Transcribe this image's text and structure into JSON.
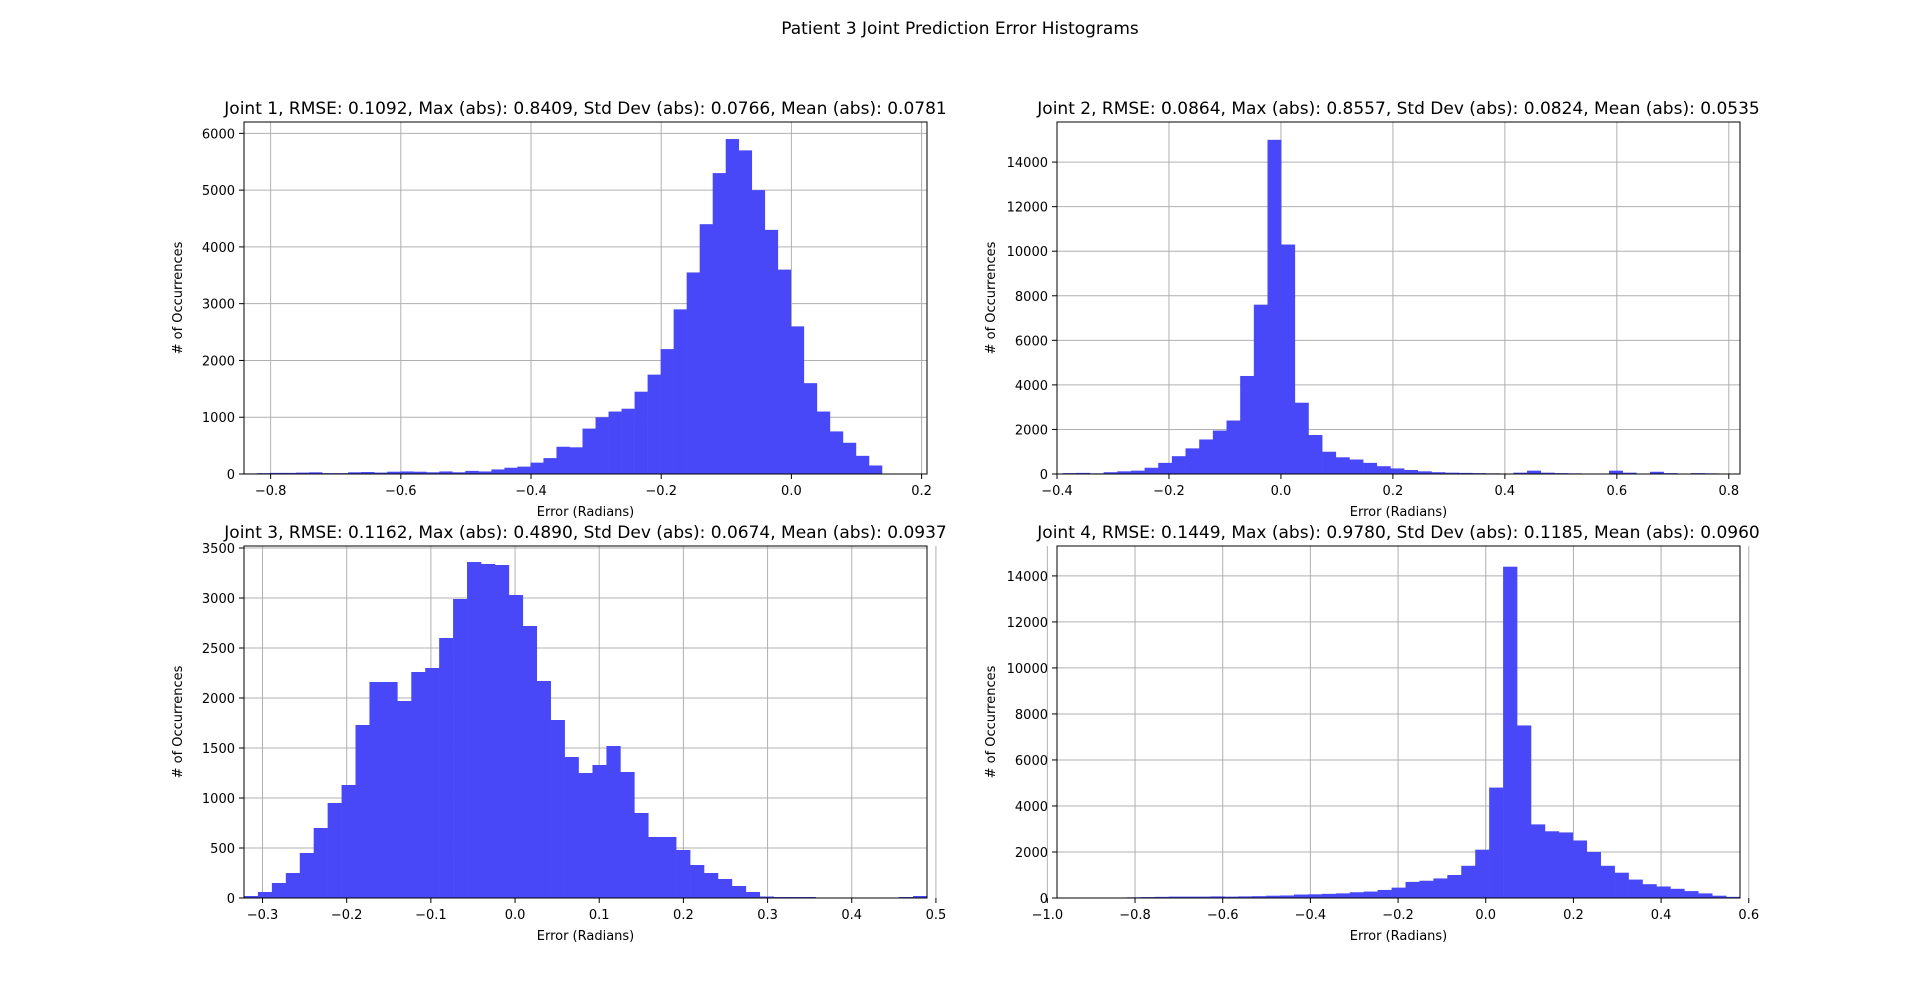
{
  "figure": {
    "title": "Patient 3 Joint Prediction Error Histograms",
    "bar_color": "#4848f8"
  },
  "chart_data": [
    {
      "type": "bar",
      "title": "Joint 1, RMSE: 0.1092, Max (abs): 0.8409, Std Dev (abs): 0.0766, Mean (abs): 0.0781",
      "xlabel": "Error (Radians)",
      "ylabel": "# of Occurrences",
      "xlim": [
        -0.8409,
        0.2083
      ],
      "ylim": [
        0,
        6200
      ],
      "xticks": [
        -0.8,
        -0.6,
        -0.4,
        -0.2,
        0.0,
        0.2
      ],
      "yticks": [
        0,
        1000,
        2000,
        3000,
        4000,
        5000,
        6000
      ],
      "grid": true,
      "bin_start": -0.8409,
      "bin_width": 0.02,
      "values": [
        10,
        15,
        20,
        20,
        25,
        30,
        15,
        15,
        30,
        35,
        25,
        40,
        45,
        40,
        30,
        45,
        30,
        55,
        45,
        80,
        110,
        130,
        200,
        280,
        480,
        470,
        800,
        1000,
        1100,
        1150,
        1450,
        1750,
        2200,
        2900,
        3550,
        4400,
        5300,
        5900,
        5700,
        5000,
        4300,
        3600,
        2600,
        1600,
        1100,
        750,
        550,
        320,
        150
      ]
    },
    {
      "type": "bar",
      "title": "Joint 2, RMSE: 0.0864, Max (abs): 0.8557, Std Dev (abs): 0.0824, Mean (abs): 0.0535",
      "xlabel": "Error (Radians)",
      "ylabel": "# of Occurrences",
      "xlim": [
        -0.4,
        0.82
      ],
      "ylim": [
        0,
        15800
      ],
      "xticks": [
        -0.4,
        -0.2,
        0.0,
        0.2,
        0.4,
        0.6,
        0.8
      ],
      "yticks": [
        0,
        2000,
        4000,
        6000,
        8000,
        10000,
        12000,
        14000
      ],
      "grid": true,
      "bin_start": -0.39,
      "bin_width": 0.0244,
      "values": [
        40,
        50,
        30,
        80,
        120,
        150,
        280,
        500,
        800,
        1150,
        1550,
        1950,
        2400,
        4400,
        7600,
        15000,
        10300,
        3200,
        1750,
        1000,
        750,
        650,
        500,
        350,
        250,
        180,
        120,
        80,
        60,
        50,
        40,
        30,
        20,
        60,
        150,
        60,
        40,
        30,
        20,
        20,
        150,
        60,
        20,
        100,
        40,
        20,
        40,
        30,
        20
      ]
    },
    {
      "type": "bar",
      "title": "Joint 3, RMSE: 0.1162, Max (abs): 0.4890, Std Dev (abs): 0.0674, Mean (abs): 0.0937",
      "xlabel": "Error (Radians)",
      "ylabel": "# of Occurrences",
      "xlim": [
        -0.322,
        0.4894
      ],
      "ylim": [
        0,
        3520
      ],
      "xticks": [
        -0.3,
        -0.2,
        -0.1,
        0.0,
        0.1,
        0.2,
        0.3,
        0.4,
        0.5
      ],
      "yticks": [
        0,
        500,
        1000,
        1500,
        2000,
        2500,
        3000,
        3500
      ],
      "grid": true,
      "bin_start": -0.322,
      "bin_width": 0.01656,
      "values": [
        20,
        60,
        150,
        250,
        450,
        700,
        950,
        1130,
        1730,
        2160,
        2160,
        1970,
        2260,
        2300,
        2600,
        2990,
        3360,
        3340,
        3330,
        3030,
        2720,
        2170,
        1780,
        1410,
        1250,
        1330,
        1520,
        1260,
        850,
        610,
        610,
        480,
        330,
        250,
        190,
        120,
        60,
        15,
        10,
        10,
        10,
        5,
        5,
        5,
        5,
        5,
        5,
        10,
        20
      ]
    },
    {
      "type": "bar",
      "title": "Joint 4, RMSE: 0.1449, Max (abs): 0.9780, Std Dev (abs): 0.1185, Mean (abs): 0.0960",
      "xlabel": "Error (Radians)",
      "ylabel": "# of Occurrences",
      "xlim": [
        -0.978,
        0.58
      ],
      "ylim": [
        0,
        15300
      ],
      "xticks": [
        -1.0,
        -0.8,
        -0.6,
        -0.4,
        -0.2,
        0.0,
        0.2,
        0.4,
        0.6
      ],
      "yticks": [
        0,
        2000,
        4000,
        6000,
        8000,
        10000,
        12000,
        14000
      ],
      "grid": true,
      "bin_start": -0.978,
      "bin_width": 0.0318,
      "values": [
        10,
        10,
        10,
        10,
        10,
        30,
        40,
        50,
        60,
        60,
        60,
        70,
        60,
        70,
        80,
        100,
        110,
        150,
        160,
        180,
        200,
        250,
        280,
        350,
        450,
        700,
        750,
        850,
        1000,
        1400,
        2100,
        4800,
        14400,
        7500,
        3200,
        2900,
        2850,
        2500,
        2000,
        1400,
        1100,
        800,
        600,
        500,
        400,
        300,
        200,
        100,
        50
      ]
    }
  ]
}
